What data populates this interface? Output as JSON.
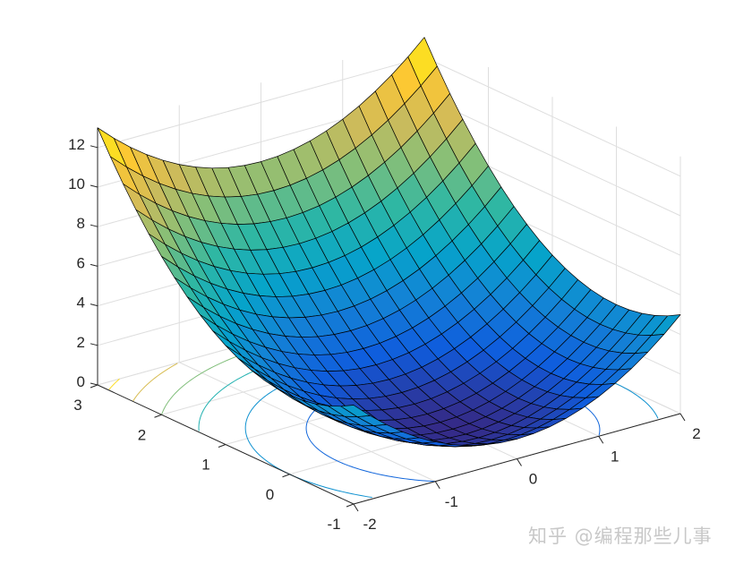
{
  "chart_data": {
    "type": "surface",
    "title": "",
    "xlabel": "",
    "ylabel": "",
    "zlabel": "",
    "xlim": [
      -2,
      2
    ],
    "ylim": [
      -1,
      3
    ],
    "zlim": [
      0,
      13
    ],
    "grid": true,
    "colormap": "parula",
    "edge_color": "#000000",
    "x_ticks": [
      "-2",
      "-1",
      "0",
      "1",
      "2"
    ],
    "y_ticks": [
      "-1",
      "0",
      "1",
      "2",
      "3"
    ],
    "z_ticks": [
      "0",
      "2",
      "4",
      "6",
      "8",
      "10",
      "12"
    ],
    "x": [
      -2,
      -1.8,
      -1.6,
      -1.4,
      -1.2,
      -1,
      -0.8,
      -0.6,
      -0.4,
      -0.2,
      0,
      0.2,
      0.4,
      0.6,
      0.8,
      1,
      1.2,
      1.4,
      1.6,
      1.8,
      2
    ],
    "y": [
      -1,
      -0.8,
      -0.6,
      -0.4,
      -0.2,
      0,
      0.2,
      0.4,
      0.6,
      0.8,
      1,
      1.2,
      1.4,
      1.6,
      1.8,
      2,
      2.2,
      2.4,
      2.6,
      2.8,
      3
    ],
    "z": [
      [
        5,
        4.24,
        3.56,
        2.96,
        2.44,
        2,
        1.64,
        1.36,
        1.16,
        1.04,
        1,
        1.04,
        1.16,
        1.36,
        1.64,
        2,
        2.44,
        2.96,
        3.56,
        4.24,
        5
      ],
      [
        4.64,
        3.88,
        3.2,
        2.6,
        2.08,
        1.64,
        1.28,
        1,
        0.8,
        0.68,
        0.64,
        0.68,
        0.8,
        1,
        1.28,
        1.64,
        2.08,
        2.6,
        3.2,
        3.88,
        4.64
      ],
      [
        4.36,
        3.6,
        2.92,
        2.32,
        1.8,
        1.36,
        1,
        0.72,
        0.52,
        0.4,
        0.36,
        0.4,
        0.52,
        0.72,
        1,
        1.36,
        1.8,
        2.32,
        2.92,
        3.6,
        4.36
      ],
      [
        4.16,
        3.4,
        2.72,
        2.12,
        1.6,
        1.16,
        0.8,
        0.52,
        0.32,
        0.2,
        0.16,
        0.2,
        0.32,
        0.52,
        0.8,
        1.16,
        1.6,
        2.12,
        2.72,
        3.4,
        4.16
      ],
      [
        4.04,
        3.28,
        2.6,
        2,
        1.48,
        1.04,
        0.68,
        0.4,
        0.2,
        0.08,
        0.04,
        0.08,
        0.2,
        0.4,
        0.68,
        1.04,
        1.48,
        2,
        2.6,
        3.28,
        4.04
      ],
      [
        4,
        3.24,
        2.56,
        1.96,
        1.44,
        1,
        0.64,
        0.36,
        0.16,
        0.04,
        0,
        0.04,
        0.16,
        0.36,
        0.64,
        1,
        1.44,
        1.96,
        2.56,
        3.24,
        4
      ],
      [
        4.04,
        3.28,
        2.6,
        2,
        1.48,
        1.04,
        0.68,
        0.4,
        0.2,
        0.08,
        0.04,
        0.08,
        0.2,
        0.4,
        0.68,
        1.04,
        1.48,
        2,
        2.6,
        3.28,
        4.04
      ],
      [
        4.16,
        3.4,
        2.72,
        2.12,
        1.6,
        1.16,
        0.8,
        0.52,
        0.32,
        0.2,
        0.16,
        0.2,
        0.32,
        0.52,
        0.8,
        1.16,
        1.6,
        2.12,
        2.72,
        3.4,
        4.16
      ],
      [
        4.36,
        3.6,
        2.92,
        2.32,
        1.8,
        1.36,
        1,
        0.72,
        0.52,
        0.4,
        0.36,
        0.4,
        0.52,
        0.72,
        1,
        1.36,
        1.8,
        2.32,
        2.92,
        3.6,
        4.36
      ],
      [
        4.64,
        3.88,
        3.2,
        2.6,
        2.08,
        1.64,
        1.28,
        1,
        0.8,
        0.68,
        0.64,
        0.68,
        0.8,
        1,
        1.28,
        1.64,
        2.08,
        2.6,
        3.2,
        3.88,
        4.64
      ],
      [
        5,
        4.24,
        3.56,
        2.96,
        2.44,
        2,
        1.64,
        1.36,
        1.16,
        1.04,
        1,
        1.04,
        1.16,
        1.36,
        1.64,
        2,
        2.44,
        2.96,
        3.56,
        4.24,
        5
      ],
      [
        5.44,
        4.68,
        4,
        3.4,
        2.88,
        2.44,
        2.08,
        1.8,
        1.6,
        1.48,
        1.44,
        1.48,
        1.6,
        1.8,
        2.08,
        2.44,
        2.88,
        3.4,
        4,
        4.68,
        5.44
      ],
      [
        5.96,
        5.2,
        4.52,
        3.92,
        3.4,
        2.96,
        2.6,
        2.32,
        2.12,
        2,
        1.96,
        2,
        2.12,
        2.32,
        2.6,
        2.96,
        3.4,
        3.92,
        4.52,
        5.2,
        5.96
      ],
      [
        6.56,
        5.8,
        5.12,
        4.52,
        4,
        3.56,
        3.2,
        2.92,
        2.72,
        2.6,
        2.56,
        2.6,
        2.72,
        2.92,
        3.2,
        3.56,
        4,
        4.52,
        5.12,
        5.8,
        6.56
      ],
      [
        7.24,
        6.48,
        5.8,
        5.2,
        4.68,
        4.24,
        3.88,
        3.6,
        3.4,
        3.28,
        3.24,
        3.28,
        3.4,
        3.6,
        3.88,
        4.24,
        4.68,
        5.2,
        5.8,
        6.48,
        7.24
      ],
      [
        8,
        7.24,
        6.56,
        5.96,
        5.44,
        5,
        4.64,
        4.36,
        4.16,
        4.04,
        4,
        4.04,
        4.16,
        4.36,
        4.64,
        5,
        5.44,
        5.96,
        6.56,
        7.24,
        8
      ],
      [
        8.84,
        8.08,
        7.4,
        6.8,
        6.28,
        5.84,
        5.48,
        5.2,
        5,
        4.88,
        4.84,
        4.88,
        5,
        5.2,
        5.48,
        5.84,
        6.28,
        6.8,
        7.4,
        8.08,
        8.84
      ],
      [
        9.76,
        9,
        8.32,
        7.72,
        7.2,
        6.76,
        6.4,
        6.12,
        5.92,
        5.8,
        5.76,
        5.8,
        5.92,
        6.12,
        6.4,
        6.76,
        7.2,
        7.72,
        8.32,
        9,
        9.76
      ],
      [
        10.76,
        10,
        9.32,
        8.72,
        8.2,
        7.76,
        7.4,
        7.12,
        6.92,
        6.8,
        6.76,
        6.8,
        6.92,
        7.12,
        7.4,
        7.76,
        8.2,
        8.72,
        9.32,
        10,
        10.76
      ],
      [
        11.84,
        11.08,
        10.4,
        9.8,
        9.28,
        8.84,
        8.48,
        8.2,
        8,
        7.88,
        7.84,
        7.88,
        8,
        8.2,
        8.48,
        8.84,
        9.28,
        9.8,
        10.4,
        11.08,
        11.84
      ],
      [
        13,
        12.24,
        11.56,
        10.96,
        10.44,
        10,
        9.64,
        9.36,
        9.16,
        9.04,
        9,
        9.04,
        9.16,
        9.36,
        9.64,
        10,
        10.44,
        10.96,
        11.56,
        12.24,
        13
      ]
    ],
    "contour_levels": [
      2,
      4,
      6,
      8,
      10,
      12
    ]
  },
  "watermark": "知乎 @编程那些儿事"
}
